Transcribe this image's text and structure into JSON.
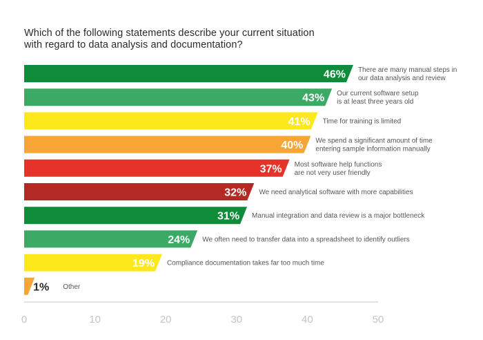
{
  "chart_data": {
    "type": "bar",
    "orientation": "horizontal",
    "title": "Which of the following statements describe your current situation with regard to data analysis and documentation?",
    "xlim": [
      0,
      50
    ],
    "xticks": [
      0,
      10,
      20,
      30,
      40,
      50
    ],
    "grid": false,
    "legend": "none",
    "value_suffix": "%",
    "categories": [
      [
        "There are many manual steps in",
        "our data analysis and review"
      ],
      [
        "Our current software setup",
        "is at least three years old"
      ],
      [
        "Time for training is limited"
      ],
      [
        "We spend a significant amount of time",
        "entering sample information manually"
      ],
      [
        "Most software help functions",
        "are not very user friendly"
      ],
      [
        "We need analytical software with more capabilities"
      ],
      [
        "Manual integration and data review is a major bottleneck"
      ],
      [
        "We often need to transfer data into a spreadsheet to identify outliers"
      ],
      [
        "Compliance documentation takes far too much time"
      ],
      [
        "Other"
      ]
    ],
    "values": [
      46,
      43,
      41,
      40,
      37,
      32,
      31,
      24,
      19,
      1
    ],
    "colors": [
      "#0e8c3a",
      "#3aaa64",
      "#fde81c",
      "#f7a635",
      "#e63329",
      "#b32a24",
      "#0e8c3a",
      "#3aaa64",
      "#fde81c",
      "#f7a635"
    ],
    "label_colors": [
      "#ffffff",
      "#ffffff",
      "#ffffff",
      "#ffffff",
      "#ffffff",
      "#ffffff",
      "#ffffff",
      "#ffffff",
      "#ffffff",
      "#2a2a2a"
    ]
  }
}
